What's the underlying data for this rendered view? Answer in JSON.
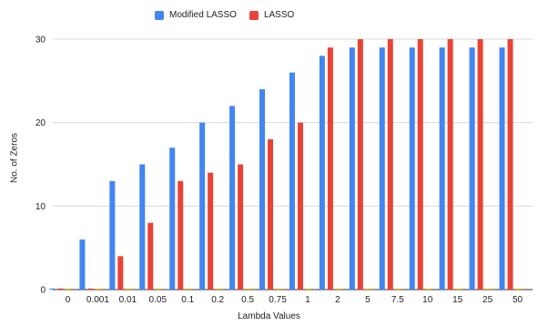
{
  "chart_data": {
    "type": "bar",
    "categories": [
      "0",
      "0.001",
      "0.01",
      "0.05",
      "0.1",
      "0.2",
      "0.5",
      "0.75",
      "1",
      "2",
      "5",
      "7.5",
      "10",
      "15",
      "25",
      "50"
    ],
    "series": [
      {
        "name": "Modified LASSO",
        "color": "#4285f4",
        "values": [
          0,
          6,
          13,
          15,
          17,
          20,
          22,
          24,
          26,
          28,
          29,
          29,
          29,
          29,
          29,
          29
        ]
      },
      {
        "name": "LASSO",
        "color": "#ea4335",
        "values": [
          0,
          0,
          4,
          8,
          13,
          14,
          15,
          18,
          20,
          29,
          30,
          30,
          30,
          30,
          30,
          30
        ]
      },
      {
        "color": "#fbbc04",
        "values": [
          0,
          0,
          0,
          0,
          0,
          0,
          0,
          0,
          0,
          0,
          0,
          0,
          0,
          0,
          0,
          0
        ]
      }
    ],
    "xlabel": "Lambda Values",
    "ylabel": "No. of Zeros",
    "ylim": [
      0,
      30
    ],
    "yticks": [
      0,
      10,
      20,
      30
    ],
    "grid": true,
    "legend": "top-center"
  }
}
